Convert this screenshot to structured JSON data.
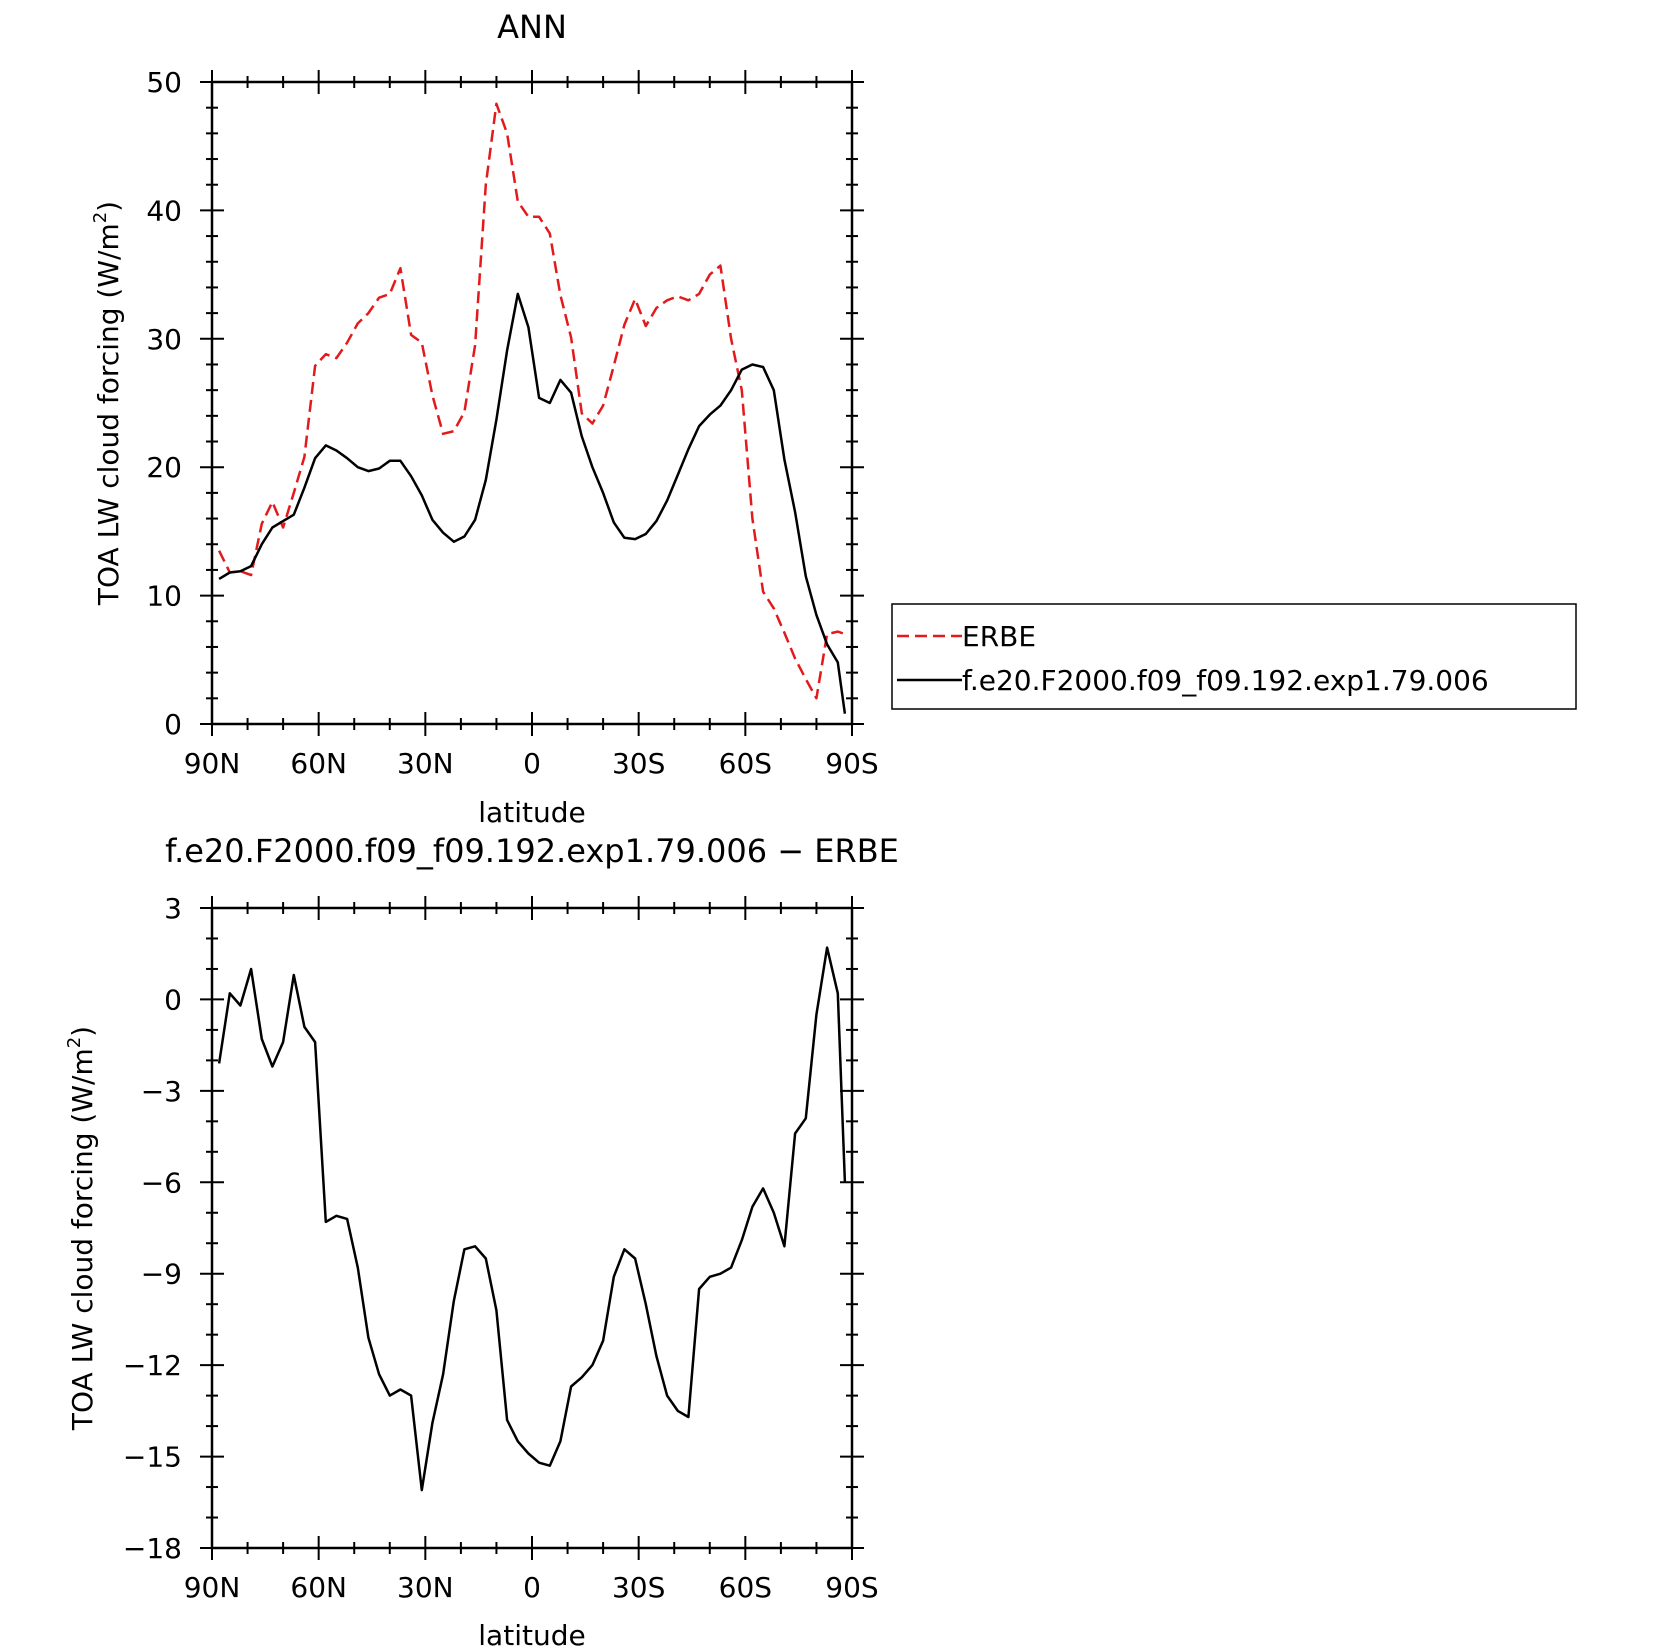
{
  "chart_data": [
    {
      "type": "line",
      "title": "ANN",
      "xlabel": "latitude",
      "ylabel": "TOA LW cloud forcing (W/m",
      "ylabel_sup": "2",
      "ylabel_end": ")",
      "xlim": [
        -90,
        90
      ],
      "ylim": [
        0,
        50
      ],
      "x_direction": "north-to-south",
      "xticks": [
        {
          "value": -90,
          "label": "90N"
        },
        {
          "value": -60,
          "label": "60N"
        },
        {
          "value": -30,
          "label": "30N"
        },
        {
          "value": 0,
          "label": "0"
        },
        {
          "value": 30,
          "label": "30S"
        },
        {
          "value": 60,
          "label": "60S"
        },
        {
          "value": 90,
          "label": "90S"
        }
      ],
      "yticks": [
        0,
        10,
        20,
        30,
        40,
        50
      ],
      "legend_position": "right",
      "series": [
        {
          "name": "ERBE",
          "color": "#e31a1c",
          "dash": "dashed",
          "x": [
            -88,
            -85,
            -82,
            -79,
            -76,
            -73,
            -70,
            -67,
            -64,
            -61,
            -58,
            -55,
            -52,
            -49,
            -46,
            -43,
            -40,
            -37,
            -34,
            -31,
            -28,
            -25,
            -22,
            -19,
            -16,
            -13,
            -10,
            -7,
            -4,
            -1,
            2,
            5,
            8,
            11,
            14,
            17,
            20,
            23,
            26,
            29,
            32,
            35,
            38,
            41,
            44,
            47,
            50,
            53,
            56,
            59,
            62,
            65,
            68,
            71,
            74,
            77,
            80,
            83,
            86,
            88
          ],
          "y": [
            13.5,
            11.8,
            11.9,
            11.6,
            15.6,
            17.3,
            15.3,
            18.0,
            20.8,
            27.9,
            28.8,
            28.5,
            29.7,
            31.2,
            32.0,
            33.2,
            33.5,
            35.5,
            30.3,
            29.7,
            25.6,
            22.6,
            22.8,
            24.3,
            29.5,
            42.0,
            48.3,
            46.0,
            40.7,
            39.5,
            39.5,
            38.2,
            33.4,
            30.1,
            24.2,
            23.4,
            24.8,
            27.9,
            31.1,
            33.1,
            31.0,
            32.4,
            33.0,
            33.3,
            33.0,
            33.5,
            35.0,
            35.7,
            30.0,
            26.0,
            16.0,
            10.3,
            9.0,
            7.1,
            5.1,
            3.5,
            2.0,
            7.0,
            7.2,
            7.0
          ]
        },
        {
          "name": "f.e20.F2000.f09_f09.192.exp1.79.006",
          "color": "#000000",
          "dash": "solid",
          "x": [
            -88,
            -85,
            -82,
            -79,
            -76,
            -73,
            -70,
            -67,
            -64,
            -61,
            -58,
            -55,
            -52,
            -49,
            -46,
            -43,
            -40,
            -37,
            -34,
            -31,
            -28,
            -25,
            -22,
            -19,
            -16,
            -13,
            -10,
            -7,
            -4,
            -1,
            2,
            5,
            8,
            11,
            14,
            17,
            20,
            23,
            26,
            29,
            32,
            35,
            38,
            41,
            44,
            47,
            50,
            53,
            56,
            59,
            62,
            65,
            68,
            71,
            74,
            77,
            80,
            83,
            86,
            88
          ],
          "y": [
            11.3,
            11.8,
            11.9,
            12.3,
            14.0,
            15.3,
            15.8,
            16.3,
            18.4,
            20.7,
            21.7,
            21.3,
            20.7,
            20.0,
            19.7,
            19.9,
            20.5,
            20.5,
            19.3,
            17.8,
            15.9,
            14.9,
            14.2,
            14.6,
            15.9,
            19.0,
            23.7,
            29.1,
            33.5,
            30.9,
            25.4,
            25.0,
            26.8,
            25.8,
            22.4,
            20.0,
            18.0,
            15.7,
            14.5,
            14.4,
            14.8,
            15.8,
            17.4,
            19.4,
            21.4,
            23.2,
            24.1,
            24.8,
            26.0,
            27.6,
            28.0,
            27.8,
            26.0,
            20.6,
            16.5,
            11.5,
            8.5,
            6.2,
            4.8,
            0.8
          ]
        }
      ]
    },
    {
      "type": "line",
      "title": "f.e20.F2000.f09_f09.192.exp1.79.006 − ERBE",
      "xlabel": "latitude",
      "ylabel": "TOA LW cloud forcing (W/m",
      "ylabel_sup": "2",
      "ylabel_end": ")",
      "xlim": [
        -90,
        90
      ],
      "ylim": [
        -18,
        3
      ],
      "x_direction": "north-to-south",
      "xticks": [
        {
          "value": -90,
          "label": "90N"
        },
        {
          "value": -60,
          "label": "60N"
        },
        {
          "value": -30,
          "label": "30N"
        },
        {
          "value": 0,
          "label": "0"
        },
        {
          "value": 30,
          "label": "30S"
        },
        {
          "value": 60,
          "label": "60S"
        },
        {
          "value": 90,
          "label": "90S"
        }
      ],
      "yticks": [
        3,
        0,
        -3,
        -6,
        -9,
        -12,
        -15,
        -18
      ],
      "ytick_labels": [
        "3",
        "0",
        "−3",
        "−6",
        "−9",
        "−12",
        "−15",
        "−18"
      ],
      "series": [
        {
          "color": "#000000",
          "dash": "solid",
          "x": [
            -88,
            -85,
            -82,
            -79,
            -76,
            -73,
            -70,
            -67,
            -64,
            -61,
            -58,
            -55,
            -52,
            -49,
            -46,
            -43,
            -40,
            -37,
            -34,
            -31,
            -28,
            -25,
            -22,
            -19,
            -16,
            -13,
            -10,
            -7,
            -4,
            -1,
            2,
            5,
            8,
            11,
            14,
            17,
            20,
            23,
            26,
            29,
            32,
            35,
            38,
            41,
            44,
            47,
            50,
            53,
            56,
            59,
            62,
            65,
            68,
            71,
            74,
            77,
            80,
            83,
            86,
            88
          ],
          "y": [
            -2.1,
            0.2,
            -0.2,
            1.0,
            -1.3,
            -2.2,
            -1.4,
            0.8,
            -0.9,
            -1.4,
            -7.3,
            -7.1,
            -7.2,
            -8.8,
            -11.1,
            -12.3,
            -13.0,
            -12.8,
            -13.0,
            -16.1,
            -13.9,
            -12.3,
            -9.9,
            -8.2,
            -8.1,
            -8.5,
            -10.2,
            -13.8,
            -14.5,
            -14.9,
            -15.2,
            -15.3,
            -14.5,
            -12.7,
            -12.4,
            -12.0,
            -11.2,
            -9.1,
            -8.2,
            -8.5,
            -10.0,
            -11.7,
            -13.0,
            -13.5,
            -13.7,
            -9.5,
            -9.1,
            -9.0,
            -8.8,
            -7.9,
            -6.8,
            -6.2,
            -7.0,
            -8.1,
            -4.4,
            -3.9,
            -0.5,
            1.7,
            0.2,
            -6.0
          ]
        }
      ]
    }
  ]
}
